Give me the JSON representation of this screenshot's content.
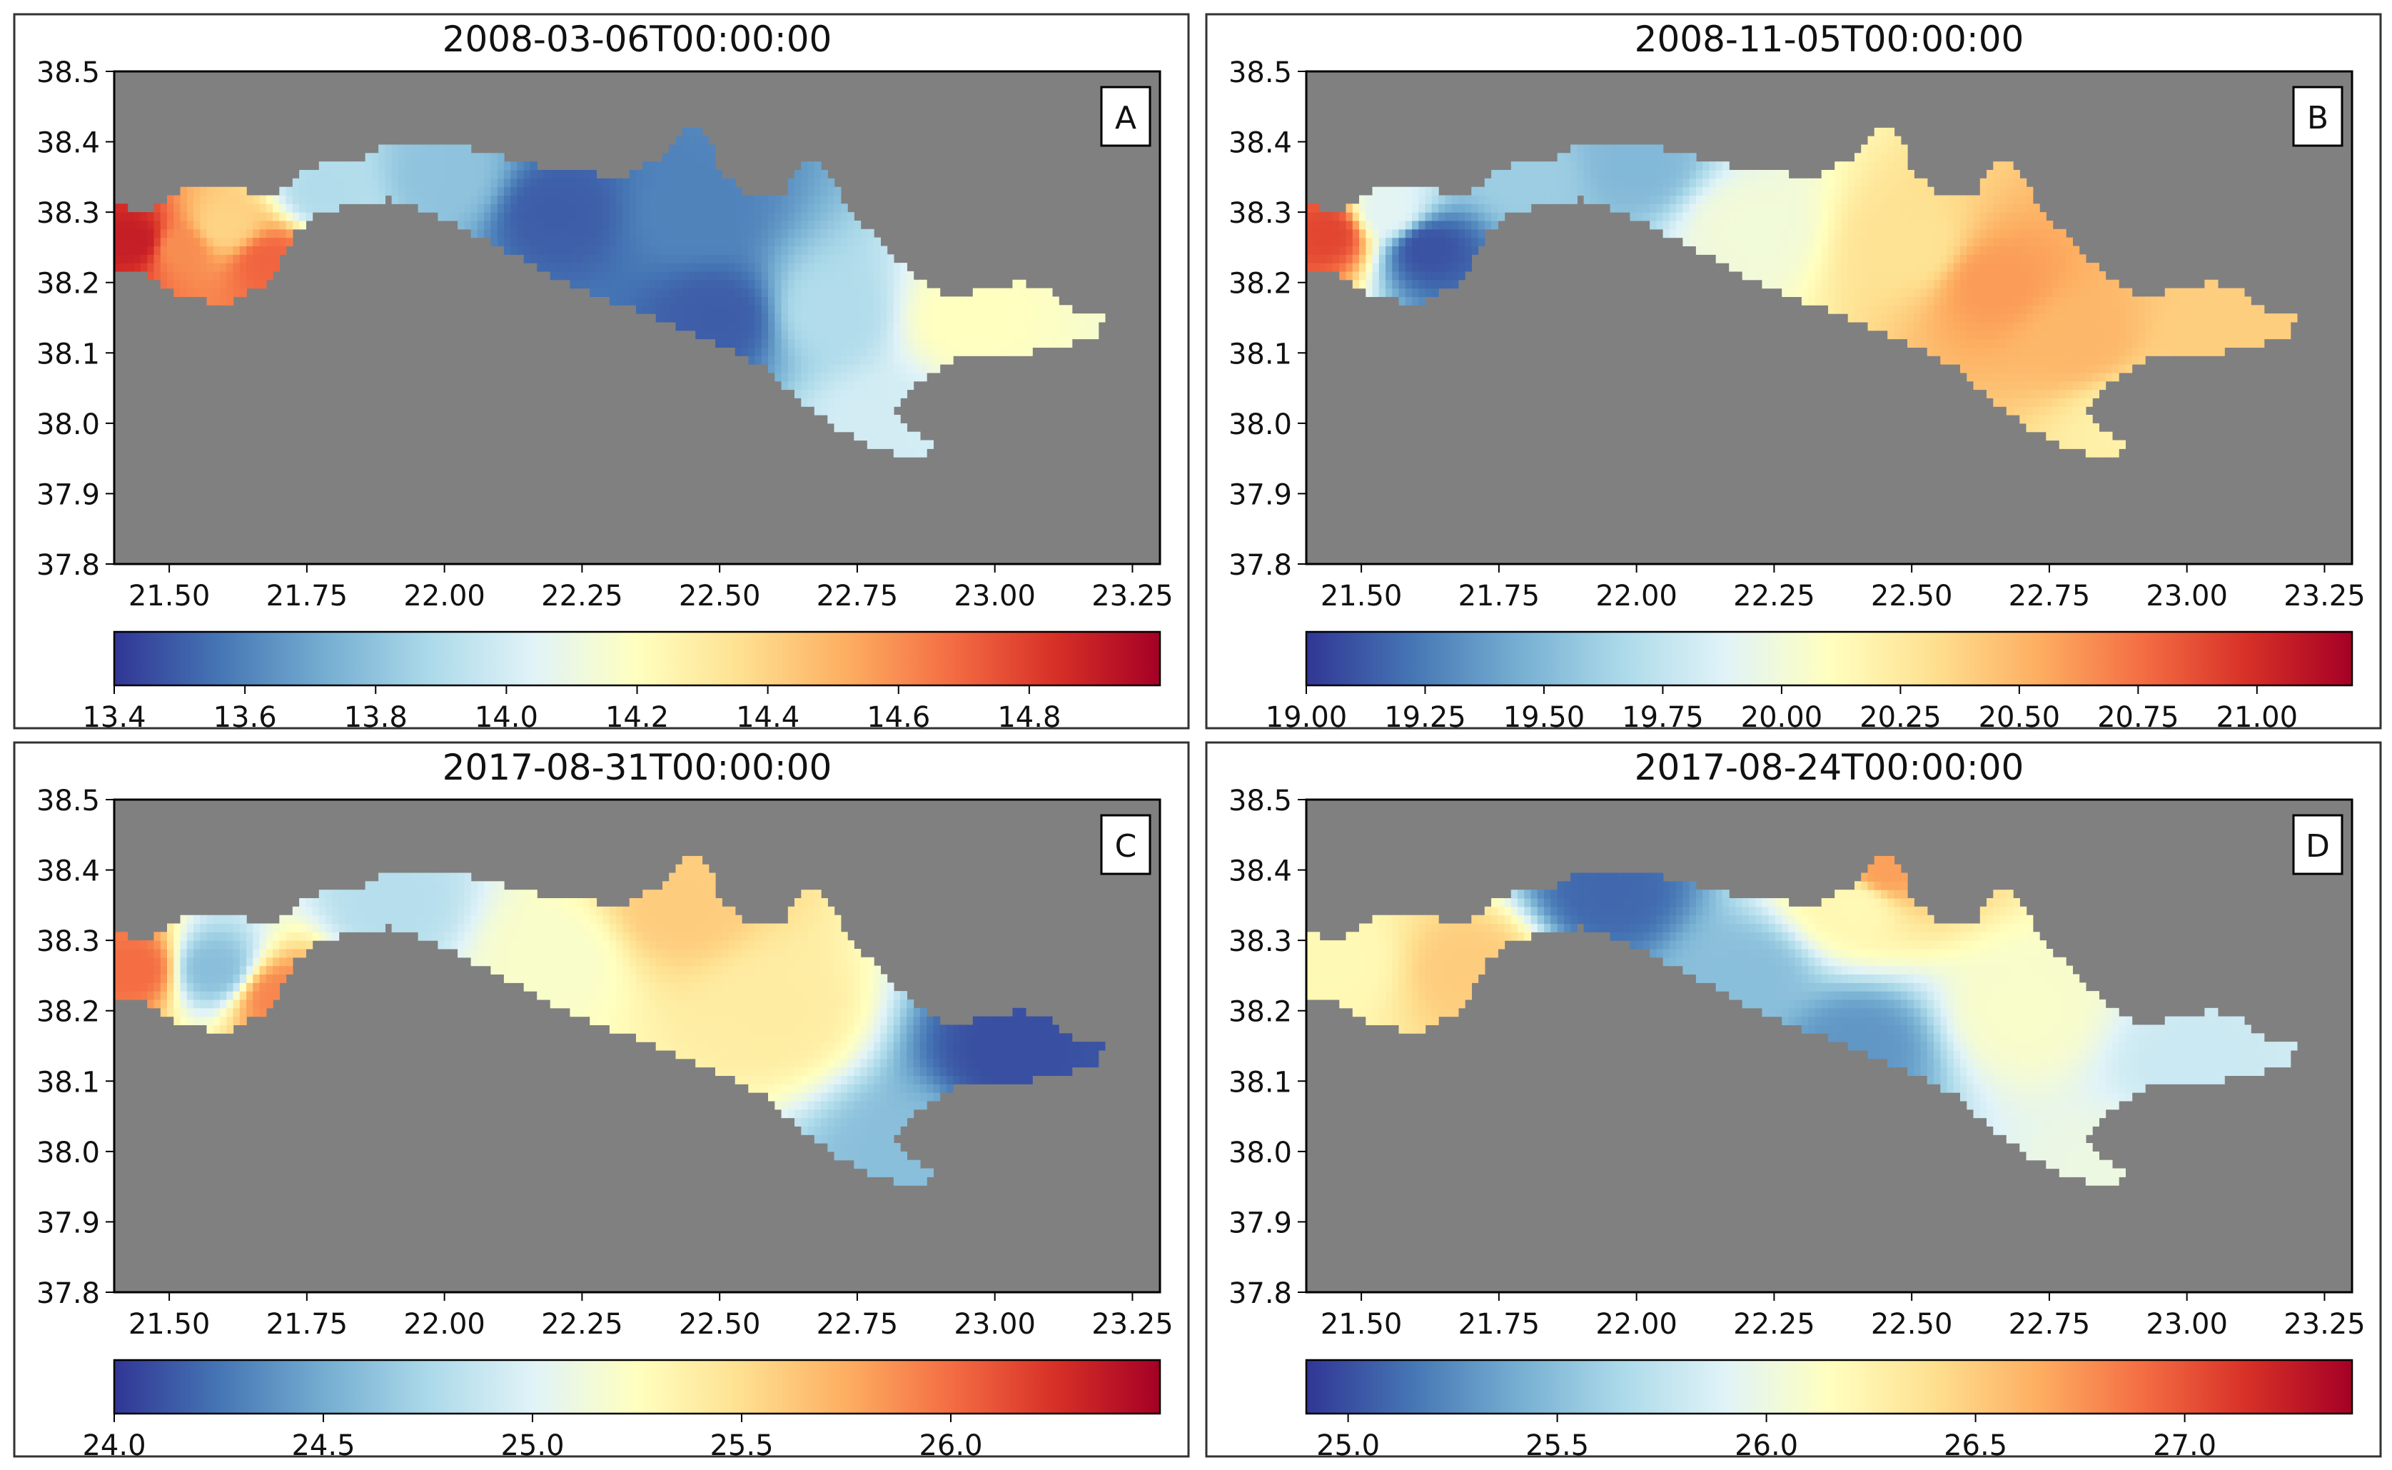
{
  "figure": {
    "background": "#ffffff",
    "no_data_color": "#808080",
    "colormap": "RdYlBu_r"
  },
  "chart_data": [
    {
      "type": "heatmap",
      "panel_label": "A",
      "title": "2008-03-06T00:00:00",
      "xlim": [
        21.4,
        23.3
      ],
      "ylim": [
        37.8,
        38.5
      ],
      "xticks": [
        21.5,
        21.75,
        22.0,
        22.25,
        22.5,
        22.75,
        23.0,
        23.25
      ],
      "xtick_labels": [
        "21.50",
        "21.75",
        "22.00",
        "22.25",
        "22.50",
        "22.75",
        "23.00",
        "23.25"
      ],
      "yticks": [
        37.8,
        37.9,
        38.0,
        38.1,
        38.2,
        38.3,
        38.4,
        38.5
      ],
      "ytick_labels": [
        "37.8",
        "37.9",
        "38.0",
        "38.1",
        "38.2",
        "38.3",
        "38.4",
        "38.5"
      ],
      "colorbar": {
        "range": [
          13.4,
          15.0
        ],
        "ticks": [
          13.4,
          13.6,
          13.8,
          14.0,
          14.2,
          14.4,
          14.6,
          14.8
        ],
        "tick_labels": [
          "13.4",
          "13.6",
          "13.8",
          "14.0",
          "14.2",
          "14.4",
          "14.6",
          "14.8"
        ]
      },
      "field_description": "west basin warm (~14.7-14.9), main gulf cool (~13.5-13.8), east end near 14.0-14.3",
      "samples": [
        {
          "lon": 21.44,
          "lat": 38.26,
          "value": 14.9
        },
        {
          "lon": 21.52,
          "lat": 38.25,
          "value": 14.6
        },
        {
          "lon": 21.6,
          "lat": 38.28,
          "value": 14.4
        },
        {
          "lon": 21.68,
          "lat": 38.23,
          "value": 14.7
        },
        {
          "lon": 21.78,
          "lat": 38.33,
          "value": 13.9
        },
        {
          "lon": 22.0,
          "lat": 38.35,
          "value": 13.8
        },
        {
          "lon": 22.2,
          "lat": 38.3,
          "value": 13.5
        },
        {
          "lon": 22.45,
          "lat": 38.3,
          "value": 13.6
        },
        {
          "lon": 22.5,
          "lat": 38.15,
          "value": 13.5
        },
        {
          "lon": 22.7,
          "lat": 38.16,
          "value": 13.9
        },
        {
          "lon": 22.95,
          "lat": 38.15,
          "value": 14.2
        },
        {
          "lon": 22.8,
          "lat": 38.0,
          "value": 14.0
        }
      ]
    },
    {
      "type": "heatmap",
      "panel_label": "B",
      "title": "2008-11-05T00:00:00",
      "xlim": [
        21.4,
        23.3
      ],
      "ylim": [
        37.8,
        38.5
      ],
      "xticks": [
        21.5,
        21.75,
        22.0,
        22.25,
        22.5,
        22.75,
        23.0,
        23.25
      ],
      "xtick_labels": [
        "21.50",
        "21.75",
        "22.00",
        "22.25",
        "22.50",
        "22.75",
        "23.00",
        "23.25"
      ],
      "yticks": [
        37.8,
        37.9,
        38.0,
        38.1,
        38.2,
        38.3,
        38.4,
        38.5
      ],
      "ytick_labels": [
        "37.8",
        "37.9",
        "38.0",
        "38.1",
        "38.2",
        "38.3",
        "38.4",
        "38.5"
      ],
      "colorbar": {
        "range": [
          19.0,
          21.2
        ],
        "ticks": [
          19.0,
          19.25,
          19.5,
          19.75,
          20.0,
          20.25,
          20.5,
          20.75,
          21.0
        ],
        "tick_labels": [
          "19.00",
          "19.25",
          "19.50",
          "19.75",
          "20.00",
          "20.25",
          "20.50",
          "20.75",
          "21.00"
        ]
      },
      "field_description": "cold eddy in west basin (~19.1) surrounded by warm rim (~20.8), gulf mostly warm 20.1-20.6",
      "samples": [
        {
          "lon": 21.44,
          "lat": 38.27,
          "value": 20.9
        },
        {
          "lon": 21.62,
          "lat": 38.25,
          "value": 19.1
        },
        {
          "lon": 21.55,
          "lat": 38.3,
          "value": 19.9
        },
        {
          "lon": 21.8,
          "lat": 38.35,
          "value": 19.6
        },
        {
          "lon": 22.0,
          "lat": 38.37,
          "value": 19.5
        },
        {
          "lon": 22.2,
          "lat": 38.28,
          "value": 20.0
        },
        {
          "lon": 22.5,
          "lat": 38.25,
          "value": 20.3
        },
        {
          "lon": 22.65,
          "lat": 38.2,
          "value": 20.6
        },
        {
          "lon": 22.8,
          "lat": 38.12,
          "value": 20.5
        },
        {
          "lon": 23.05,
          "lat": 38.12,
          "value": 20.4
        },
        {
          "lon": 22.9,
          "lat": 38.0,
          "value": 20.2
        }
      ]
    },
    {
      "type": "heatmap",
      "panel_label": "C",
      "title": "2017-08-31T00:00:00",
      "xlim": [
        21.4,
        23.3
      ],
      "ylim": [
        37.8,
        38.5
      ],
      "xticks": [
        21.5,
        21.75,
        22.0,
        22.25,
        22.5,
        22.75,
        23.0,
        23.25
      ],
      "xtick_labels": [
        "21.50",
        "21.75",
        "22.00",
        "22.25",
        "22.50",
        "22.75",
        "23.00",
        "23.25"
      ],
      "yticks": [
        37.8,
        37.9,
        38.0,
        38.1,
        38.2,
        38.3,
        38.4,
        38.5
      ],
      "ytick_labels": [
        "37.8",
        "37.9",
        "38.0",
        "38.1",
        "38.2",
        "38.3",
        "38.4",
        "38.5"
      ],
      "colorbar": {
        "range": [
          24.0,
          26.5
        ],
        "ticks": [
          24.0,
          24.5,
          25.0,
          25.5,
          26.0
        ],
        "tick_labels": [
          "24.0",
          "24.5",
          "25.0",
          "25.5",
          "26.0"
        ]
      },
      "field_description": "warm rim in west basin (~26.0) with cool eddy core (~24.6), gulf ~25.3, cold spot near 23.0 E (~24.1)",
      "samples": [
        {
          "lon": 21.44,
          "lat": 38.26,
          "value": 26.0
        },
        {
          "lon": 21.58,
          "lat": 38.26,
          "value": 24.6
        },
        {
          "lon": 21.7,
          "lat": 38.22,
          "value": 25.9
        },
        {
          "lon": 21.9,
          "lat": 38.35,
          "value": 24.8
        },
        {
          "lon": 22.2,
          "lat": 38.28,
          "value": 25.2
        },
        {
          "lon": 22.42,
          "lat": 38.35,
          "value": 25.6
        },
        {
          "lon": 22.6,
          "lat": 38.2,
          "value": 25.4
        },
        {
          "lon": 23.03,
          "lat": 38.14,
          "value": 24.1
        },
        {
          "lon": 22.85,
          "lat": 38.0,
          "value": 24.6
        }
      ]
    },
    {
      "type": "heatmap",
      "panel_label": "D",
      "title": "2017-08-24T00:00:00",
      "xlim": [
        21.4,
        23.3
      ],
      "ylim": [
        37.8,
        38.5
      ],
      "xticks": [
        21.5,
        21.75,
        22.0,
        22.25,
        22.5,
        22.75,
        23.0,
        23.25
      ],
      "xtick_labels": [
        "21.50",
        "21.75",
        "22.00",
        "22.25",
        "22.50",
        "22.75",
        "23.00",
        "23.25"
      ],
      "yticks": [
        37.8,
        37.9,
        38.0,
        38.1,
        38.2,
        38.3,
        38.4,
        38.5
      ],
      "ytick_labels": [
        "37.8",
        "37.9",
        "38.0",
        "38.1",
        "38.2",
        "38.3",
        "38.4",
        "38.5"
      ],
      "colorbar": {
        "range": [
          24.9,
          27.4
        ],
        "ticks": [
          25.0,
          25.5,
          26.0,
          26.5,
          27.0
        ],
        "tick_labels": [
          "25.0",
          "25.5",
          "26.0",
          "26.5",
          "27.0"
        ]
      },
      "field_description": "west basin mixed (~26.0-26.5), northern coast cold (~25.1-25.4), gulf mostly ~25.9-26.2",
      "samples": [
        {
          "lon": 21.45,
          "lat": 38.27,
          "value": 26.2
        },
        {
          "lon": 21.7,
          "lat": 38.26,
          "value": 26.5
        },
        {
          "lon": 21.95,
          "lat": 38.37,
          "value": 25.1
        },
        {
          "lon": 22.2,
          "lat": 38.25,
          "value": 25.5
        },
        {
          "lon": 22.4,
          "lat": 38.35,
          "value": 26.2
        },
        {
          "lon": 22.45,
          "lat": 38.4,
          "value": 26.7
        },
        {
          "lon": 22.4,
          "lat": 38.15,
          "value": 25.3
        },
        {
          "lon": 22.7,
          "lat": 38.2,
          "value": 26.1
        },
        {
          "lon": 23.0,
          "lat": 38.12,
          "value": 25.8
        },
        {
          "lon": 22.9,
          "lat": 37.98,
          "value": 26.0
        }
      ]
    }
  ]
}
